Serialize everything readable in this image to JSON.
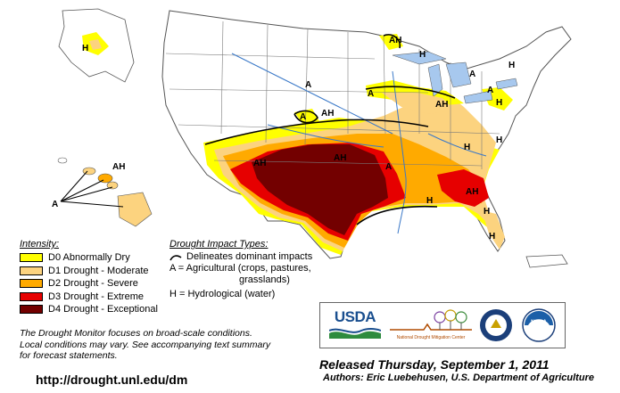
{
  "legend": {
    "intensity_title": "Intensity:",
    "intensity": [
      {
        "label": "D0 Abnormally Dry",
        "color": "#ffff00"
      },
      {
        "label": "D1 Drought - Moderate",
        "color": "#fcd37f"
      },
      {
        "label": "D2 Drought - Severe",
        "color": "#ffaa00"
      },
      {
        "label": "D3 Drought - Extreme",
        "color": "#e60000"
      },
      {
        "label": "D4 Drought - Exceptional",
        "color": "#730000"
      }
    ],
    "impact_title": "Drought Impact Types:",
    "impact_line": "Delineates dominant impacts",
    "impact_a1": "A = Agricultural (crops, pastures,",
    "impact_a2": "grasslands)",
    "impact_h": "H = Hydrological (water)"
  },
  "disclaimer": {
    "line1": "The Drought Monitor focuses on broad-scale conditions.",
    "line2": "Local conditions may vary. See accompanying text summary",
    "line3": "for forecast statements."
  },
  "url": "http://drought.unl.edu/dm",
  "released": "Released Thursday, September 1, 2011",
  "authors": "Authors: Eric Luebehusen, U.S. Department of Agriculture",
  "logos": {
    "usda": "USDA",
    "ndmc": "National Drought Mitigation Center",
    "noaa": "NOAA"
  },
  "map_labels": {
    "ah": "AH",
    "a": "A",
    "h": "H"
  },
  "colors": {
    "water": "#a7c8ee",
    "land": "#ffffff",
    "border": "#7a7a7a",
    "river": "#3a78c8"
  }
}
